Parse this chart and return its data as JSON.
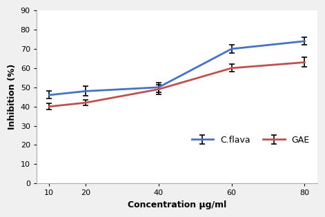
{
  "x": [
    10,
    20,
    40,
    60,
    80
  ],
  "cflava_y": [
    46,
    48,
    50,
    70,
    74
  ],
  "cflava_err": [
    2.0,
    2.5,
    2.5,
    2.0,
    2.0
  ],
  "gae_y": [
    40,
    42,
    49,
    60,
    63
  ],
  "gae_err": [
    1.5,
    1.5,
    2.5,
    2.0,
    2.5
  ],
  "cflava_color": "#4472C4",
  "gae_color": "#C0504D",
  "xlabel": "Concentration μg/ml",
  "ylabel": "Inhibition (%)",
  "ylim": [
    0,
    90
  ],
  "yticks": [
    0,
    10,
    20,
    30,
    40,
    50,
    60,
    70,
    80,
    90
  ],
  "xticks": [
    10,
    20,
    40,
    60,
    80
  ],
  "legend_cflava": "C.flava",
  "legend_gae": "GAE",
  "background_color": "#f0f0f0",
  "plot_bg_color": "#ffffff"
}
